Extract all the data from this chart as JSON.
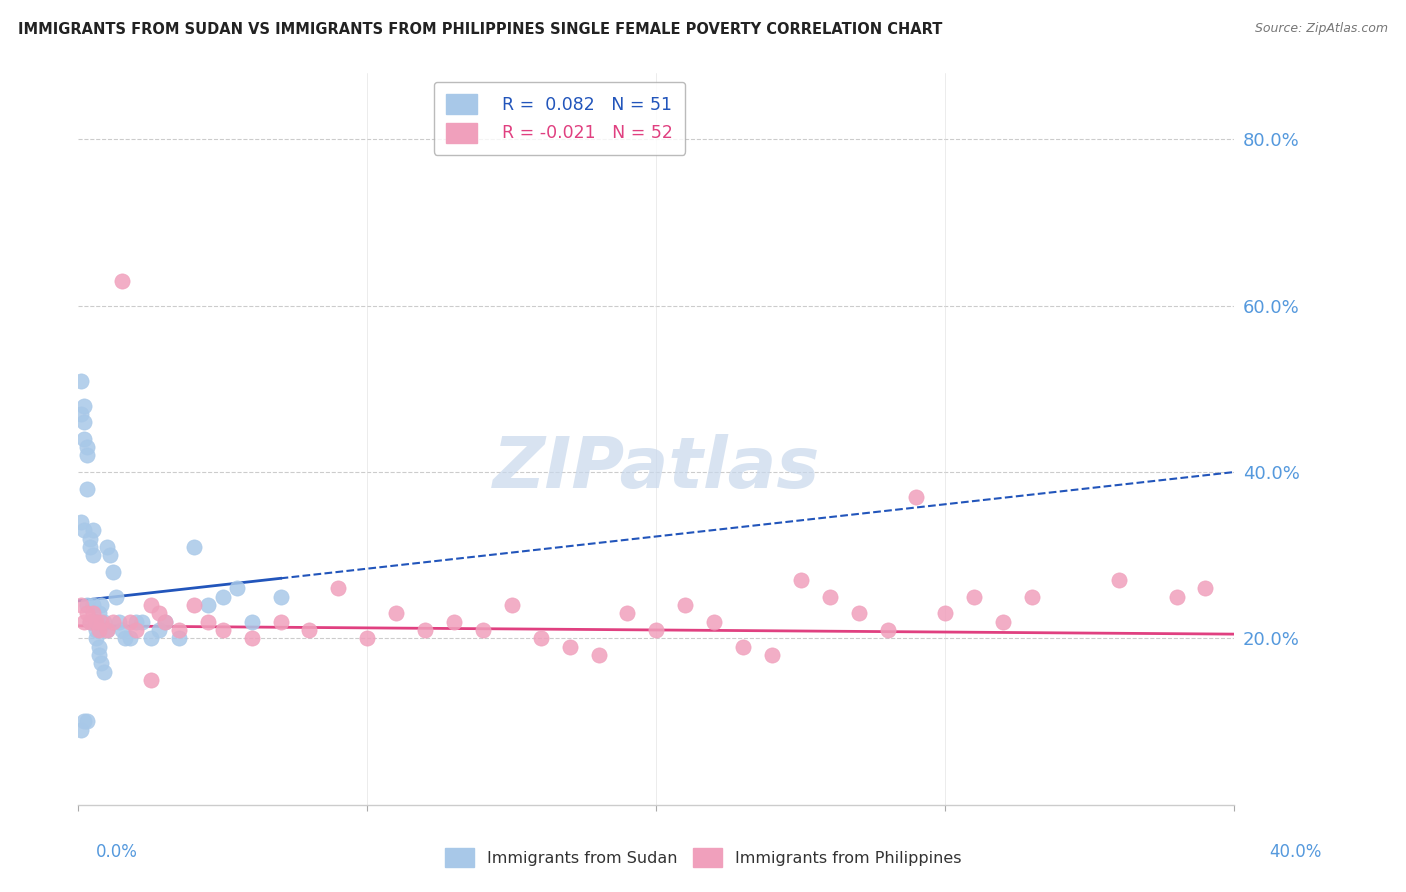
{
  "title": "IMMIGRANTS FROM SUDAN VS IMMIGRANTS FROM PHILIPPINES SINGLE FEMALE POVERTY CORRELATION CHART",
  "source": "Source: ZipAtlas.com",
  "xlim": [
    0.0,
    0.4
  ],
  "ylim": [
    0.0,
    0.88
  ],
  "yticks": [
    0.2,
    0.4,
    0.6,
    0.8
  ],
  "ytick_labels": [
    "20.0%",
    "40.0%",
    "60.0%",
    "80.0%"
  ],
  "legend_line1": "R =  0.082   N = 51",
  "legend_line2": "R = -0.021   N = 52",
  "sudan_color": "#a8c8e8",
  "phil_color": "#f0a0bc",
  "sudan_line_color": "#2255bb",
  "phil_line_color": "#e04080",
  "watermark_color": "#c8d8ec",
  "background_color": "#ffffff",
  "grid_color": "#cccccc",
  "sudan_x": [
    0.001,
    0.001,
    0.001,
    0.002,
    0.002,
    0.002,
    0.002,
    0.003,
    0.003,
    0.003,
    0.003,
    0.004,
    0.004,
    0.004,
    0.005,
    0.005,
    0.005,
    0.006,
    0.006,
    0.006,
    0.007,
    0.007,
    0.007,
    0.008,
    0.008,
    0.009,
    0.009,
    0.01,
    0.01,
    0.011,
    0.012,
    0.013,
    0.014,
    0.015,
    0.016,
    0.018,
    0.02,
    0.022,
    0.025,
    0.028,
    0.03,
    0.035,
    0.04,
    0.045,
    0.05,
    0.055,
    0.06,
    0.07,
    0.001,
    0.002,
    0.003
  ],
  "sudan_y": [
    0.47,
    0.51,
    0.34,
    0.48,
    0.46,
    0.44,
    0.33,
    0.43,
    0.42,
    0.38,
    0.24,
    0.32,
    0.31,
    0.22,
    0.33,
    0.3,
    0.24,
    0.22,
    0.21,
    0.2,
    0.23,
    0.19,
    0.18,
    0.17,
    0.24,
    0.16,
    0.22,
    0.21,
    0.31,
    0.3,
    0.28,
    0.25,
    0.22,
    0.21,
    0.2,
    0.2,
    0.22,
    0.22,
    0.2,
    0.21,
    0.22,
    0.2,
    0.31,
    0.24,
    0.25,
    0.26,
    0.22,
    0.25,
    0.09,
    0.1,
    0.1
  ],
  "phil_x": [
    0.001,
    0.002,
    0.003,
    0.004,
    0.005,
    0.006,
    0.007,
    0.008,
    0.01,
    0.012,
    0.015,
    0.018,
    0.02,
    0.025,
    0.028,
    0.03,
    0.035,
    0.04,
    0.045,
    0.05,
    0.06,
    0.07,
    0.08,
    0.09,
    0.1,
    0.11,
    0.12,
    0.13,
    0.14,
    0.15,
    0.16,
    0.17,
    0.18,
    0.19,
    0.2,
    0.21,
    0.22,
    0.23,
    0.24,
    0.25,
    0.26,
    0.27,
    0.28,
    0.29,
    0.3,
    0.31,
    0.32,
    0.33,
    0.36,
    0.38,
    0.39,
    0.025
  ],
  "phil_y": [
    0.24,
    0.22,
    0.23,
    0.22,
    0.23,
    0.22,
    0.21,
    0.22,
    0.21,
    0.22,
    0.63,
    0.22,
    0.21,
    0.24,
    0.23,
    0.22,
    0.21,
    0.24,
    0.22,
    0.21,
    0.2,
    0.22,
    0.21,
    0.26,
    0.2,
    0.23,
    0.21,
    0.22,
    0.21,
    0.24,
    0.2,
    0.19,
    0.18,
    0.23,
    0.21,
    0.24,
    0.22,
    0.19,
    0.18,
    0.27,
    0.25,
    0.23,
    0.21,
    0.37,
    0.23,
    0.25,
    0.22,
    0.25,
    0.27,
    0.25,
    0.26,
    0.15
  ]
}
